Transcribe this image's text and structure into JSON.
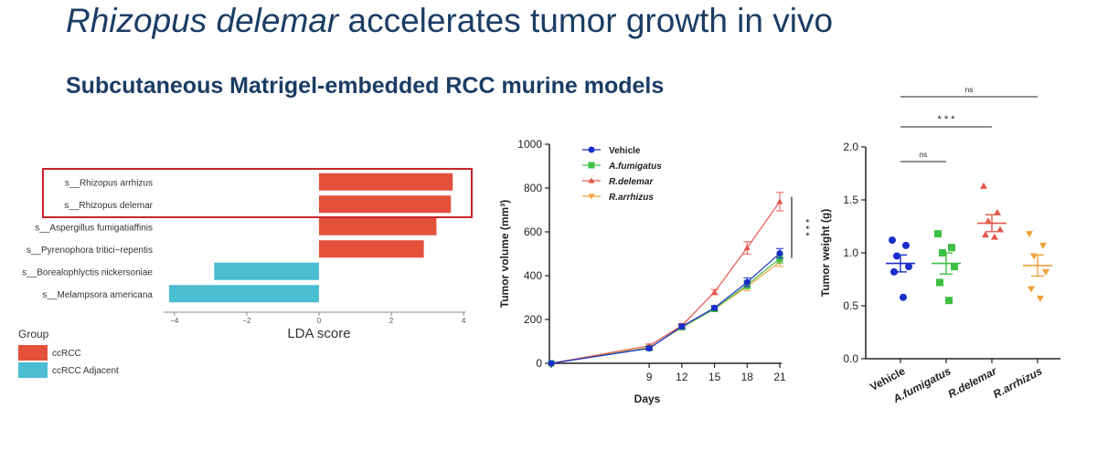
{
  "slide": {
    "title_italic": "Rhizopus delemar",
    "title_rest": " accelerates tumor growth in vivo",
    "subtitle": "Subcutaneous Matrigel-embedded RCC murine models"
  },
  "colors": {
    "ccRCC": "#e4513a",
    "ccRCC_adjacent": "#4bbdd3",
    "vehicle": "#1a2ecc",
    "a_fumigatus": "#3dbf44",
    "r_delemar": "#e4574a",
    "r_arrhizus": "#f0a13a",
    "title": "#1b3d64",
    "highlight_box": "#c8232a"
  },
  "chart_data": [
    {
      "type": "bar",
      "orientation": "horizontal",
      "categories": [
        "s__Rhizopus arrhizus",
        "s__Rhizopus delemar",
        "s__Aspergillus fumigatiaffinis",
        "s__Pyrenophora tritici−repentis",
        "s__Borealophlyctis nickersoniae",
        "s__Melampsora americana"
      ],
      "values": [
        3.7,
        3.65,
        3.25,
        2.9,
        -2.9,
        -4.15
      ],
      "groups": [
        "ccRCC",
        "ccRCC",
        "ccRCC",
        "ccRCC",
        "ccRCC Adjacent",
        "ccRCC Adjacent"
      ],
      "xlabel": "LDA score",
      "xlim": [
        -4.4,
        4.2
      ],
      "xticks": [
        -4,
        -2,
        0,
        2,
        4
      ],
      "xtick_labels": [
        "−4",
        "−2",
        "0",
        "2",
        "4"
      ],
      "legend": {
        "title": "Group",
        "entries": [
          "ccRCC",
          "ccRCC Adjacent"
        ],
        "placement": "bottom-left"
      },
      "highlighted": [
        "s__Rhizopus arrhizus",
        "s__Rhizopus delemar"
      ]
    },
    {
      "type": "line",
      "x": [
        0,
        9,
        12,
        15,
        18,
        21
      ],
      "xticks": [
        0,
        9,
        12,
        15,
        18,
        21
      ],
      "xlabel": "Days",
      "ylabel": "Tumor volume (mm³)",
      "ylim": [
        0,
        1000
      ],
      "yticks": [
        0,
        200,
        400,
        600,
        800,
        1000
      ],
      "series": [
        {
          "name": "Vehicle",
          "values": [
            0,
            68,
            168,
            253,
            370,
            502
          ],
          "error": [
            0,
            8,
            10,
            10,
            20,
            22
          ]
        },
        {
          "name": "A.fumigatus",
          "values": [
            0,
            70,
            165,
            248,
            358,
            478
          ],
          "error": [
            0,
            8,
            10,
            10,
            18,
            20
          ]
        },
        {
          "name": "R.delemar",
          "values": [
            0,
            80,
            172,
            325,
            527,
            738
          ],
          "error": [
            0,
            8,
            10,
            12,
            28,
            42
          ]
        },
        {
          "name": "R.arrhizus",
          "values": [
            0,
            72,
            163,
            248,
            350,
            462
          ],
          "error": [
            0,
            8,
            10,
            10,
            18,
            20
          ]
        }
      ],
      "significance": "* * *",
      "legend": {
        "placement": "top-left"
      }
    },
    {
      "type": "scatter",
      "categories": [
        "Vehicle",
        "A.fumigatus",
        "R.delemar",
        "R.arrhizus"
      ],
      "ylabel": "Tumor weight (g)",
      "ylim": [
        0,
        2.0
      ],
      "yticks": [
        0.0,
        0.5,
        1.0,
        1.5,
        2.0
      ],
      "ytick_labels": [
        "0.0",
        "0.5",
        "1.0",
        "1.5",
        "2.0"
      ],
      "series": [
        {
          "name": "Vehicle",
          "points": [
            1.12,
            1.07,
            0.97,
            0.87,
            0.82,
            0.58
          ],
          "mean": 0.9,
          "sem": 0.08
        },
        {
          "name": "A.fumigatus",
          "points": [
            1.18,
            1.05,
            1.0,
            0.87,
            0.72,
            0.55
          ],
          "mean": 0.9,
          "sem": 0.1
        },
        {
          "name": "R.delemar",
          "points": [
            1.63,
            1.38,
            1.3,
            1.22,
            1.17,
            1.15
          ],
          "mean": 1.28,
          "sem": 0.08
        },
        {
          "name": "R.arrhizus",
          "points": [
            1.18,
            1.07,
            0.97,
            0.82,
            0.66,
            0.57
          ],
          "mean": 0.88,
          "sem": 0.1
        }
      ],
      "comparisons": [
        {
          "from": "Vehicle",
          "to": "A.fumigatus",
          "label": "ns"
        },
        {
          "from": "Vehicle",
          "to": "R.delemar",
          "label": "* * *"
        },
        {
          "from": "Vehicle",
          "to": "R.arrhizus",
          "label": "ns"
        }
      ]
    }
  ]
}
